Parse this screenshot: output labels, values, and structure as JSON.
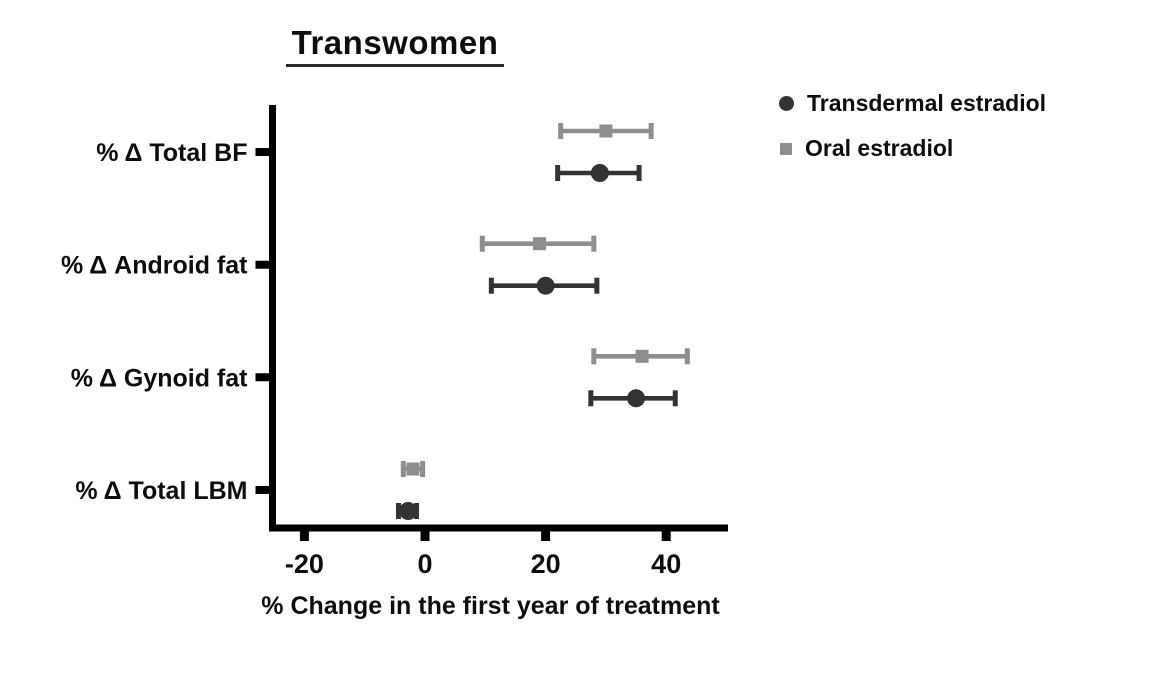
{
  "title": "Transwomen",
  "xlabel": "% Change in the first year of treatment",
  "legend": [
    {
      "label": "Transdermal estradiol",
      "marker": "circle",
      "color": "#333333"
    },
    {
      "label": "Oral estradiol",
      "marker": "square",
      "color": "#8e8e8e"
    }
  ],
  "chart_data": {
    "type": "scatter",
    "subtype": "horizontal-error-bar-dot-plot",
    "title": "Transwomen",
    "xlabel": "% Change in the first year of treatment",
    "categories": [
      "% Δ Total BF",
      "% Δ Android fat",
      "% Δ Gynoid fat",
      "% Δ Total LBM"
    ],
    "xticks": [
      -20,
      0,
      20,
      40
    ],
    "xlim": [
      -25,
      50
    ],
    "grid": false,
    "legend_position": "upper-right",
    "axis_color": "#000000",
    "series": [
      {
        "name": "Oral estradiol",
        "marker": "square",
        "color": "#8e8e8e",
        "values": [
          30,
          19,
          36,
          -2
        ],
        "ci_low": [
          22.5,
          9.5,
          28,
          -3.6
        ],
        "ci_high": [
          37.5,
          28,
          43.5,
          -0.4
        ]
      },
      {
        "name": "Transdermal estradiol",
        "marker": "circle",
        "color": "#333333",
        "values": [
          29,
          20,
          35,
          -2.8
        ],
        "ci_low": [
          22,
          11,
          27.5,
          -4.4
        ],
        "ci_high": [
          35.5,
          28.5,
          41.5,
          -1.4
        ]
      }
    ]
  }
}
